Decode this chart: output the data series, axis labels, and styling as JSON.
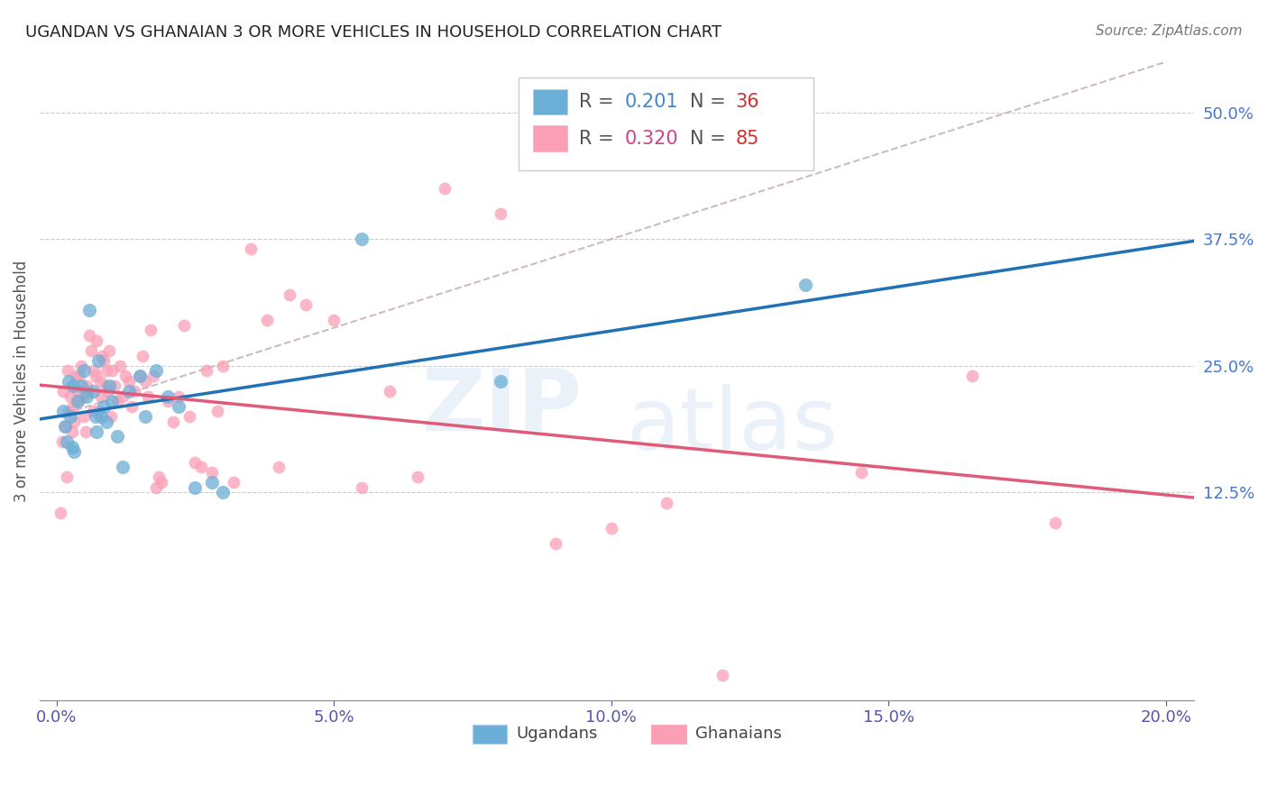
{
  "title": "UGANDAN VS GHANAIAN 3 OR MORE VEHICLES IN HOUSEHOLD CORRELATION CHART",
  "source": "Source: ZipAtlas.com",
  "ylabel": "3 or more Vehicles in Household",
  "x_tick_labels": [
    "0.0%",
    "5.0%",
    "10.0%",
    "15.0%",
    "20.0%"
  ],
  "x_tick_values": [
    0.0,
    5.0,
    10.0,
    15.0,
    20.0
  ],
  "y_tick_labels_right": [
    "12.5%",
    "25.0%",
    "37.5%",
    "50.0%"
  ],
  "y_tick_values_right": [
    12.5,
    25.0,
    37.5,
    50.0
  ],
  "ugandan_R": 0.201,
  "ugandan_N": 36,
  "ghanaian_R": 0.32,
  "ghanaian_N": 85,
  "ugandan_color": "#6baed6",
  "ghanaian_color": "#fa9fb5",
  "ugandan_line_color": "#2171b5",
  "ghanaian_line_color": "#e05a7a",
  "ref_line_color": "#c8b0b0",
  "background_color": "#ffffff",
  "xmin": -0.3,
  "xmax": 20.5,
  "ymin": -8.0,
  "ymax": 55.0,
  "ugandan_x": [
    0.12,
    0.15,
    0.18,
    0.22,
    0.25,
    0.28,
    0.3,
    0.32,
    0.38,
    0.45,
    0.5,
    0.55,
    0.6,
    0.65,
    0.7,
    0.72,
    0.75,
    0.8,
    0.85,
    0.9,
    0.95,
    1.0,
    1.1,
    1.2,
    1.3,
    1.5,
    1.6,
    1.8,
    2.0,
    2.2,
    2.5,
    2.8,
    3.0,
    5.5,
    8.0,
    13.5
  ],
  "ugandan_y": [
    20.5,
    19.0,
    17.5,
    23.5,
    20.0,
    17.0,
    23.0,
    16.5,
    21.5,
    23.0,
    24.5,
    22.0,
    30.5,
    22.5,
    20.0,
    18.5,
    25.5,
    20.0,
    21.0,
    19.5,
    23.0,
    21.5,
    18.0,
    15.0,
    22.5,
    24.0,
    20.0,
    24.5,
    22.0,
    21.0,
    13.0,
    13.5,
    12.5,
    37.5,
    23.5,
    33.0
  ],
  "ghanaian_x": [
    0.08,
    0.1,
    0.12,
    0.15,
    0.18,
    0.2,
    0.22,
    0.25,
    0.28,
    0.3,
    0.32,
    0.35,
    0.38,
    0.4,
    0.42,
    0.45,
    0.48,
    0.5,
    0.52,
    0.55,
    0.58,
    0.6,
    0.62,
    0.65,
    0.68,
    0.7,
    0.72,
    0.75,
    0.78,
    0.8,
    0.82,
    0.85,
    0.88,
    0.9,
    0.92,
    0.95,
    0.98,
    1.0,
    1.05,
    1.1,
    1.15,
    1.2,
    1.25,
    1.3,
    1.35,
    1.4,
    1.5,
    1.55,
    1.6,
    1.65,
    1.7,
    1.75,
    1.8,
    1.85,
    1.9,
    2.0,
    2.1,
    2.2,
    2.3,
    2.4,
    2.5,
    2.6,
    2.7,
    2.8,
    2.9,
    3.0,
    3.2,
    3.5,
    3.8,
    4.0,
    4.2,
    4.5,
    5.0,
    5.5,
    6.0,
    6.5,
    7.0,
    8.0,
    9.0,
    10.0,
    11.0,
    12.0,
    14.5,
    16.5,
    18.0
  ],
  "ghanaian_y": [
    10.5,
    17.5,
    22.5,
    19.0,
    14.0,
    24.5,
    20.5,
    22.0,
    18.5,
    21.0,
    19.5,
    24.0,
    22.5,
    21.5,
    24.0,
    25.0,
    22.0,
    20.0,
    18.5,
    23.0,
    22.5,
    28.0,
    26.5,
    20.5,
    24.5,
    24.0,
    27.5,
    20.5,
    23.5,
    22.0,
    26.0,
    25.5,
    23.0,
    24.5,
    22.5,
    26.5,
    20.0,
    24.5,
    23.0,
    21.5,
    25.0,
    22.0,
    24.0,
    23.5,
    21.0,
    22.5,
    24.0,
    26.0,
    23.5,
    22.0,
    28.5,
    24.0,
    13.0,
    14.0,
    13.5,
    21.5,
    19.5,
    22.0,
    29.0,
    20.0,
    15.5,
    15.0,
    24.5,
    14.5,
    20.5,
    25.0,
    13.5,
    36.5,
    29.5,
    15.0,
    32.0,
    31.0,
    29.5,
    13.0,
    22.5,
    14.0,
    42.5,
    40.0,
    7.5,
    9.0,
    11.5,
    -5.5,
    14.5,
    24.0,
    9.5
  ],
  "ugandan_dot_size": 120,
  "ghanaian_dot_size": 100,
  "alpha": 0.75,
  "ugandan_R_color": "#4488cc",
  "ugandan_N_color": "#cc3333",
  "ghanaian_R_color": "#cc4488",
  "ghanaian_N_color": "#cc3333",
  "legend_label_color": "#555555",
  "right_axis_color": "#4477cc",
  "bottom_axis_color": "#5555aa"
}
